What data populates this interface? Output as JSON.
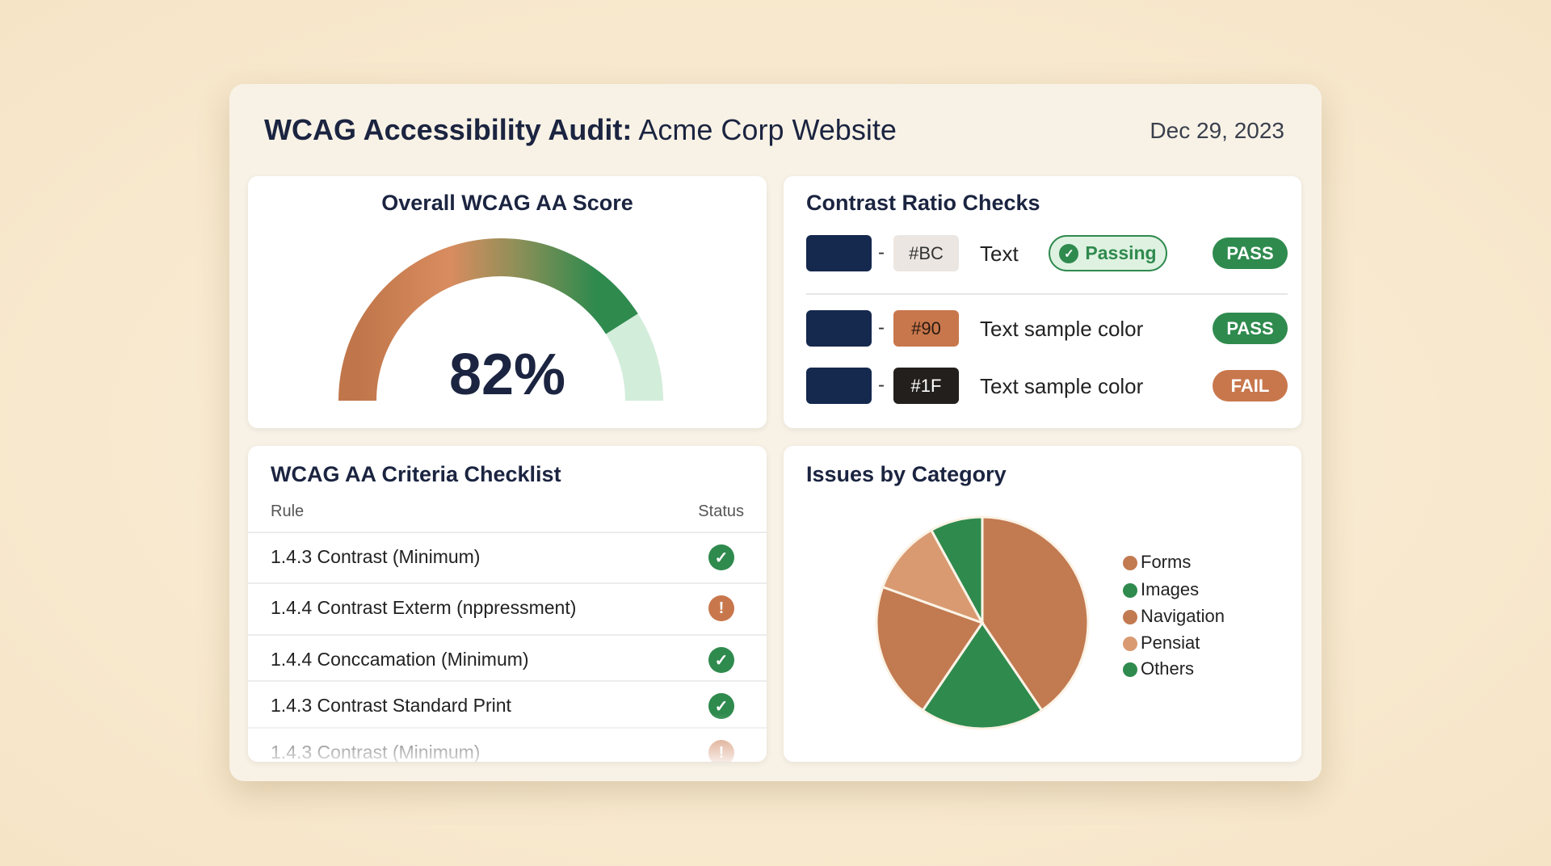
{
  "header": {
    "title_bold": "WCAG Accessibility Audit:",
    "title_rest": " Acme Corp Website",
    "date": "Dec 29, 2023"
  },
  "score": {
    "title": "Overall WCAG AA Score",
    "value": 82,
    "label": "82%",
    "colors": {
      "start": "#c0764a",
      "mid": "#d98c5f",
      "end": "#2f8a4e",
      "track": "#d3eddb"
    }
  },
  "contrast": {
    "title": "Contrast Ratio Checks",
    "rows": [
      {
        "swatch": "#15284e",
        "hex": "#BC",
        "hex_bg": "#ebe6e1",
        "hex_fg": "#333",
        "text": "Text",
        "pill": "Passing",
        "result": "PASS",
        "result_color": "#2f8a4e"
      },
      {
        "swatch": "#15284e",
        "hex": "#90",
        "hex_bg": "#c8774c",
        "hex_fg": "#2a1a10",
        "text": "Text sample color",
        "result": "PASS",
        "result_color": "#2f8a4e"
      },
      {
        "swatch": "#15284e",
        "hex": "#1F",
        "hex_bg": "#231f1c",
        "hex_fg": "#fff",
        "text": "Text sample color",
        "result": "FAIL",
        "result_color": "#c8774c"
      }
    ],
    "dash": "-"
  },
  "checklist": {
    "title": "WCAG AA Criteria Checklist",
    "col_rule": "Rule",
    "col_status": "Status",
    "rows": [
      {
        "rule": "1.4.3 Contrast (Minimum)",
        "status": "pass"
      },
      {
        "rule": "1.4.4 Contrast Exterm (nppressment)",
        "status": "warning"
      },
      {
        "rule": "1.4.4 Conccamation (Minimum)",
        "status": "pass"
      },
      {
        "rule": "1.4.3 Contrast Standard Print",
        "status": "pass"
      },
      {
        "rule": "1.4.3 Contrast (Minimum)",
        "status": "warning"
      }
    ]
  },
  "chart_data": {
    "type": "pie",
    "title": "Issues by Category",
    "legend": "right",
    "slices": [
      {
        "name": "Forms",
        "value": 40.5,
        "color": "#c27a51"
      },
      {
        "name": "Images",
        "value": 19,
        "color": "#2f8a4e"
      },
      {
        "name": "Navigation",
        "value": 21,
        "color": "#c27a51"
      },
      {
        "name": "Pensiat",
        "value": 11.5,
        "color": "#d99a72"
      },
      {
        "name": "Others",
        "value": 8,
        "color": "#2f8a4e"
      }
    ]
  }
}
